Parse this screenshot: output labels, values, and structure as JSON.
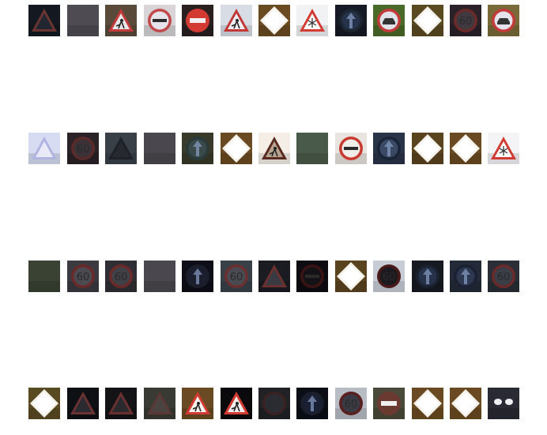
{
  "grid": {
    "rows": 4,
    "cols": 13,
    "tiles": [
      [
        {
          "sign": "triangle",
          "bg": "#141820",
          "edge": "#6a3530",
          "fill": "#222630",
          "glyph": ""
        },
        {
          "sign": "none",
          "bg": "#4e4c52",
          "edge": "#4e4c52",
          "fill": "#4e4c52",
          "glyph": ""
        },
        {
          "sign": "triangle",
          "bg": "#5a4a3a",
          "edge": "#c23a3a",
          "fill": "#e8e6e8",
          "glyph": "man-at-work"
        },
        {
          "sign": "circle",
          "bg": "#d8d4d8",
          "edge": "#c24a4a",
          "fill": "#e6e4ea",
          "glyph": "bar"
        },
        {
          "sign": "no-entry",
          "bg": "#2a2020",
          "edge": "#d23a32",
          "fill": "#d23a32",
          "glyph": ""
        },
        {
          "sign": "triangle",
          "bg": "#d8dce4",
          "edge": "#c23838",
          "fill": "#eeeef2",
          "glyph": "man-at-work"
        },
        {
          "sign": "diamond",
          "bg": "#6a4a20",
          "edge": "#f4f2ea",
          "fill": "#ffffff",
          "glyph": ""
        },
        {
          "sign": "triangle",
          "bg": "#f0f2f4",
          "edge": "#d23a32",
          "fill": "#ffffff",
          "glyph": "snow"
        },
        {
          "sign": "circle",
          "bg": "#161a24",
          "edge": "#1c2430",
          "fill": "#26324a",
          "glyph": "arrow"
        },
        {
          "sign": "circle",
          "bg": "#4a6a2a",
          "edge": "#c23a3a",
          "fill": "#e0e2ea",
          "glyph": "car"
        },
        {
          "sign": "diamond",
          "bg": "#5a4a22",
          "edge": "#f4f2ea",
          "fill": "#ffffff",
          "glyph": ""
        },
        {
          "sign": "circle",
          "bg": "#2a2228",
          "edge": "#6a2a2a",
          "fill": "#403a40",
          "glyph": "60"
        },
        {
          "sign": "circle",
          "bg": "#7a6a3a",
          "edge": "#c23a3a",
          "fill": "#e4e2ea",
          "glyph": "car"
        }
      ],
      [
        {
          "sign": "triangle",
          "bg": "#d8dcf2",
          "edge": "#b0b4e0",
          "fill": "#e8eaf8",
          "glyph": ""
        },
        {
          "sign": "circle",
          "bg": "#2a2226",
          "edge": "#5a2a2a",
          "fill": "#3a3236",
          "glyph": "60"
        },
        {
          "sign": "triangle",
          "bg": "#3a4048",
          "edge": "#1e2228",
          "fill": "#262a30",
          "glyph": ""
        },
        {
          "sign": "none",
          "bg": "#4a484e",
          "edge": "#4a484e",
          "fill": "#4a484e",
          "glyph": ""
        },
        {
          "sign": "circle",
          "bg": "#3a3a2a",
          "edge": "#2a3a3a",
          "fill": "#3a4a4a",
          "glyph": "arrow"
        },
        {
          "sign": "diamond",
          "bg": "#6a4a22",
          "edge": "#f4f2ea",
          "fill": "#ffffff",
          "glyph": ""
        },
        {
          "sign": "triangle",
          "bg": "#f4eee6",
          "edge": "#5a2a20",
          "fill": "#b8a290",
          "glyph": "man-at-work"
        },
        {
          "sign": "none",
          "bg": "#4a5a4a",
          "edge": "#4a5a4a",
          "fill": "#4a5a4a",
          "glyph": ""
        },
        {
          "sign": "circle",
          "bg": "#e8e4e0",
          "edge": "#c83a30",
          "fill": "#f0ece8",
          "glyph": "bar"
        },
        {
          "sign": "circle",
          "bg": "#2a3448",
          "edge": "#1a2438",
          "fill": "#3a4a64",
          "glyph": "arrow"
        },
        {
          "sign": "diamond",
          "bg": "#5a4420",
          "edge": "#f4f2ea",
          "fill": "#ffffff",
          "glyph": ""
        },
        {
          "sign": "diamond",
          "bg": "#6a4a22",
          "edge": "#f4f2ea",
          "fill": "#ffffff",
          "glyph": ""
        },
        {
          "sign": "triangle",
          "bg": "#f4f4f6",
          "edge": "#d23a32",
          "fill": "#ffffff",
          "glyph": "snow"
        }
      ],
      [
        {
          "sign": "none",
          "bg": "#3a4234",
          "edge": "#3a4234",
          "fill": "#3a4234",
          "glyph": ""
        },
        {
          "sign": "circle",
          "bg": "#3a3a40",
          "edge": "#6a2a2a",
          "fill": "#4a4a50",
          "glyph": "60"
        },
        {
          "sign": "circle",
          "bg": "#2e2e34",
          "edge": "#6a2a2a",
          "fill": "#404046",
          "glyph": "60"
        },
        {
          "sign": "none",
          "bg": "#4a484e",
          "edge": "#4a484e",
          "fill": "#4a484e",
          "glyph": ""
        },
        {
          "sign": "circle",
          "bg": "#0e0e18",
          "edge": "#1a1e2a",
          "fill": "#1a1e2e",
          "glyph": "arrow"
        },
        {
          "sign": "circle",
          "bg": "#3a4048",
          "edge": "#6a3030",
          "fill": "#4a4a52",
          "glyph": "60"
        },
        {
          "sign": "triangle",
          "bg": "#1a1c22",
          "edge": "#6a3030",
          "fill": "#3a3a42",
          "glyph": ""
        },
        {
          "sign": "circle",
          "bg": "#0e0c10",
          "edge": "#3a1414",
          "fill": "#141216",
          "glyph": "bar"
        },
        {
          "sign": "diamond",
          "bg": "#5a4420",
          "edge": "#f4f2ea",
          "fill": "#ffffff",
          "glyph": ""
        },
        {
          "sign": "circle",
          "bg": "#c8ccd4",
          "edge": "#4a1a1a",
          "fill": "#1c1a1e",
          "glyph": "60"
        },
        {
          "sign": "circle",
          "bg": "#161a20",
          "edge": "#1a2230",
          "fill": "#26324a",
          "glyph": "arrow"
        },
        {
          "sign": "circle",
          "bg": "#242a38",
          "edge": "#1a2234",
          "fill": "#2e3850",
          "glyph": "arrow"
        },
        {
          "sign": "circle",
          "bg": "#2a2e36",
          "edge": "#6a2a2a",
          "fill": "#3a3e46",
          "glyph": "60"
        }
      ],
      [
        {
          "sign": "diamond",
          "bg": "#5a4a22",
          "edge": "#f4f2ea",
          "fill": "#ffffff",
          "glyph": ""
        },
        {
          "sign": "triangle",
          "bg": "#0e1014",
          "edge": "#6a3232",
          "fill": "#2a2a30",
          "glyph": ""
        },
        {
          "sign": "triangle",
          "bg": "#141416",
          "edge": "#6a3030",
          "fill": "#2a2a2e",
          "glyph": ""
        },
        {
          "sign": "triangle",
          "bg": "#3a3a34",
          "edge": "#5a3838",
          "fill": "#4a4440",
          "glyph": ""
        },
        {
          "sign": "triangle",
          "bg": "#6a4a22",
          "edge": "#d23a32",
          "fill": "#f4f0ec",
          "glyph": "man-at-work"
        },
        {
          "sign": "triangle",
          "bg": "#0a0a0c",
          "edge": "#d23a32",
          "fill": "#f0eeee",
          "glyph": "man-at-work"
        },
        {
          "sign": "circle",
          "bg": "#202226",
          "edge": "#3a2222",
          "fill": "#2a2c34",
          "glyph": "60"
        },
        {
          "sign": "circle",
          "bg": "#0c0e16",
          "edge": "#1a1e2a",
          "fill": "#1a2034",
          "glyph": "arrow"
        },
        {
          "sign": "circle",
          "bg": "#b8bcc4",
          "edge": "#5a2020",
          "fill": "#3a3a44",
          "glyph": "60"
        },
        {
          "sign": "no-entry",
          "bg": "#4a4a3a",
          "edge": "#6a3a30",
          "fill": "#6a3a30",
          "glyph": ""
        },
        {
          "sign": "diamond",
          "bg": "#6a4a22",
          "edge": "#f4f2ea",
          "fill": "#ffffff",
          "glyph": ""
        },
        {
          "sign": "diamond",
          "bg": "#6a4a22",
          "edge": "#f4f2ea",
          "fill": "#ffffff",
          "glyph": ""
        },
        {
          "sign": "lights",
          "bg": "#2a2a34",
          "edge": "#f0f0f4",
          "fill": "#f0f0f4",
          "glyph": ""
        }
      ]
    ]
  }
}
